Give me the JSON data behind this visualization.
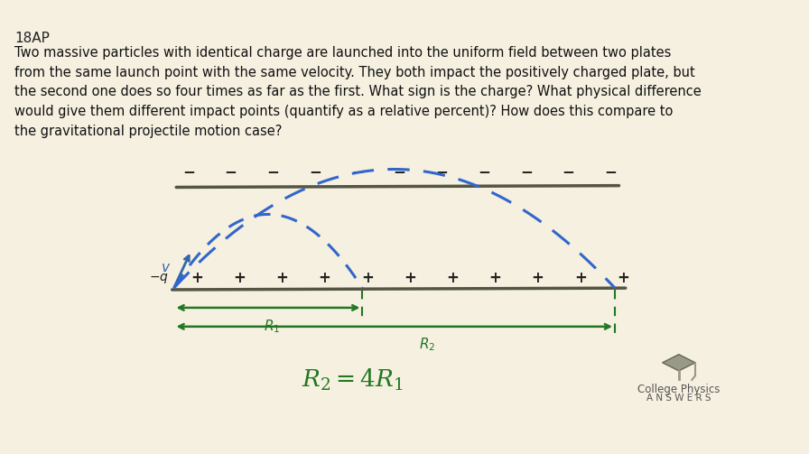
{
  "bg_color": "#f5f0e0",
  "title_label": "18AP",
  "problem_text": "Two massive particles with identical charge are launched into the uniform field between two plates\nfrom the same launch point with the same velocity. They both impact the positively charged plate, but\nthe second one does so four times as far as the first. What sign is the charge? What physical difference\nwould give them different impact points (quantify as a relative percent)? How does this compare to\nthe gravitational projectile motion case?",
  "equation_text": "$R_2 = 4R_1$",
  "plate_color": "#555544",
  "plus_color": "#222222",
  "minus_color": "#222222",
  "arc_color": "#3366cc",
  "arrow_color": "#3366aa",
  "range_color": "#227722",
  "neg_q_label": "$-q$",
  "v_label": "$v$",
  "R1_label": "$R_1$",
  "R2_label": "$R_2$"
}
